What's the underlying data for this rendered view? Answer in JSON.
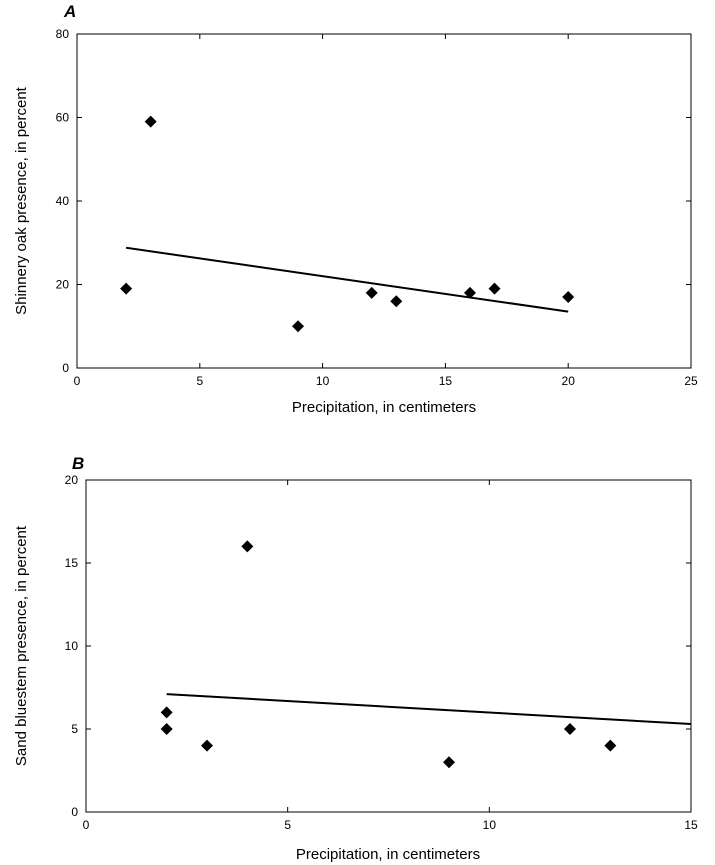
{
  "chart_data": [
    {
      "type": "scatter",
      "panel_label": "A",
      "xlabel": "Precipitation, in centimeters",
      "ylabel": "Shinnery oak presence, in percent",
      "xlim": [
        0,
        25
      ],
      "ylim": [
        0,
        80
      ],
      "xticks": [
        "0",
        "5",
        "10",
        "15",
        "20",
        "25"
      ],
      "yticks": [
        "0",
        "20",
        "40",
        "60",
        "80"
      ],
      "x": [
        2,
        3,
        9,
        12,
        13,
        16,
        17,
        20
      ],
      "y": [
        19,
        59,
        10,
        18,
        16,
        18,
        19,
        17
      ],
      "trendline": {
        "x": [
          2,
          20
        ],
        "y": [
          28.8,
          13.5
        ]
      },
      "marker": "diamond",
      "marker_color": "#000000",
      "grid": false
    },
    {
      "type": "scatter",
      "panel_label": "B",
      "xlabel": "Precipitation, in centimeters",
      "ylabel": "Sand bluestem presence, in percent",
      "xlim": [
        0,
        15
      ],
      "ylim": [
        0,
        20
      ],
      "xticks": [
        "0",
        "5",
        "10",
        "15"
      ],
      "yticks": [
        "0",
        "5",
        "10",
        "15",
        "20"
      ],
      "x": [
        2,
        2,
        3,
        4,
        9,
        12,
        13
      ],
      "y": [
        6,
        5,
        4,
        16,
        3,
        5,
        4
      ],
      "trendline": {
        "x": [
          2,
          15
        ],
        "y": [
          7.1,
          5.3
        ]
      },
      "marker": "diamond",
      "marker_color": "#000000",
      "grid": false
    }
  ]
}
